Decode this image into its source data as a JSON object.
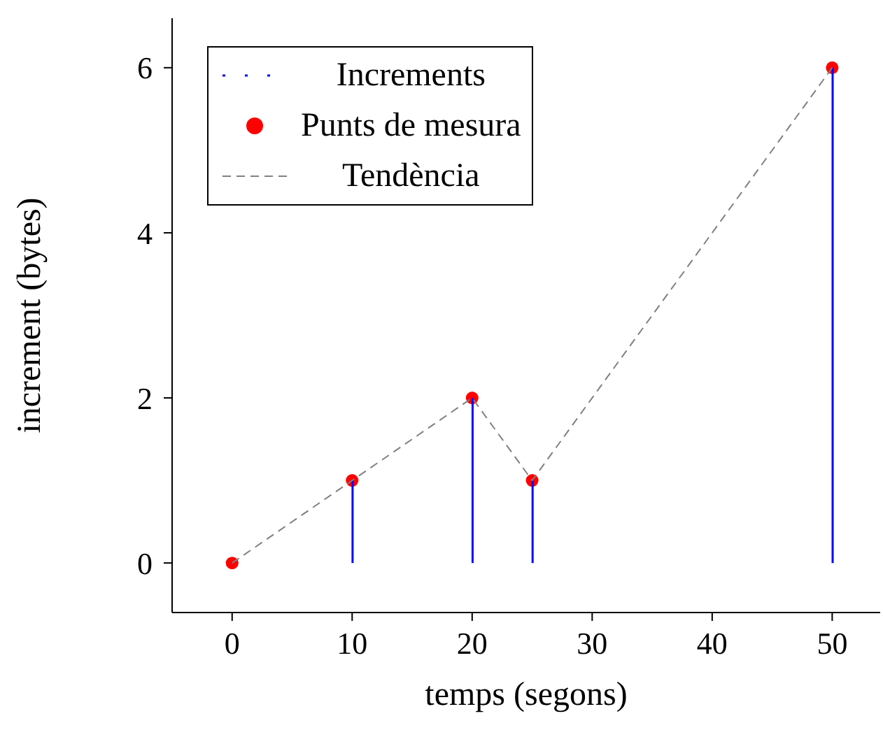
{
  "chart_data": {
    "type": "scatter",
    "xlabel": "temps (segons)",
    "ylabel": "increment (bytes)",
    "xlim": [
      -5,
      54
    ],
    "ylim": [
      -0.6,
      6.6
    ],
    "xticks": [
      0,
      10,
      20,
      30,
      40,
      50
    ],
    "yticks": [
      0,
      2,
      4,
      6
    ],
    "grid": false,
    "legend": "top left",
    "series": [
      {
        "name": "Increments",
        "type": "bar",
        "color": "#0000ff",
        "x": [
          0,
          10,
          20,
          25,
          50
        ],
        "values": [
          0,
          1,
          2,
          1,
          6
        ]
      },
      {
        "name": "Punts de mesura",
        "color": "#ff0000",
        "marker": "circle",
        "x": [
          0,
          10,
          20,
          25,
          50
        ],
        "values": [
          0,
          1,
          2,
          1,
          6
        ]
      },
      {
        "name": "Tendència",
        "type": "line",
        "color": "#808080",
        "line_style": "dashed",
        "marker": "none",
        "x": [
          0,
          10,
          20,
          25,
          50
        ],
        "values": [
          0,
          1,
          2,
          1,
          6
        ]
      }
    ]
  }
}
